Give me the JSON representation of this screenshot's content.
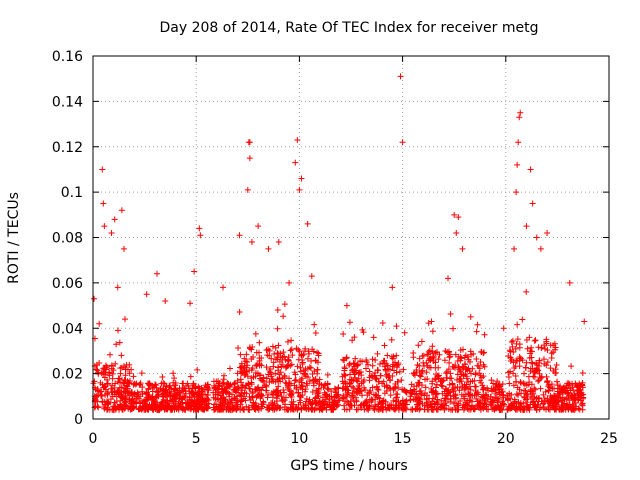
{
  "chart_data": {
    "type": "scatter",
    "title": "Day 208 of 2014, Rate Of TEC Index for receiver metg",
    "xlabel": "GPS time / hours",
    "ylabel": "ROTI / TECUs",
    "xlim": [
      0,
      25
    ],
    "ylim": [
      0,
      0.16
    ],
    "xticks": [
      0,
      5,
      10,
      15,
      20,
      25
    ],
    "xtick_labels": [
      "0",
      "5",
      "10",
      "15",
      "20",
      "25"
    ],
    "yticks": [
      0,
      0.02,
      0.04,
      0.06,
      0.08,
      0.1,
      0.12,
      0.14,
      0.16
    ],
    "ytick_labels": [
      "0",
      "0.02",
      "0.04",
      "0.06",
      "0.08",
      "0.1",
      "0.12",
      "0.14",
      "0.16"
    ],
    "grid": true,
    "marker": "+",
    "series": [
      {
        "name": "ROTI",
        "color": "#ff0000",
        "note": "dense cloud of points mostly between 0.005 and 0.035 TECU/min; gaps near 5.6, 12.0, 15.3, 19.2, 20.0 and after 23.7 hours",
        "x": [
          0.05,
          0.3,
          0.45,
          0.5,
          0.55,
          0.9,
          1.05,
          1.2,
          1.4,
          1.5,
          1.55,
          2.6,
          3.1,
          3.5,
          4.7,
          4.9,
          5.15,
          5.2,
          6.3,
          7.1,
          7.5,
          7.55,
          7.6,
          7.6,
          7.7,
          8.0,
          8.5,
          9.0,
          9.5,
          9.8,
          9.9,
          10.0,
          10.1,
          10.4,
          10.6,
          12.3,
          13.6,
          14.5,
          14.9,
          15.0,
          15.1,
          16.4,
          17.2,
          17.5,
          17.6,
          17.7,
          17.9,
          18.3,
          19.9,
          20.4,
          20.5,
          20.55,
          20.6,
          20.65,
          20.7,
          21.0,
          21.2,
          21.3,
          21.5,
          21.7,
          22.0,
          23.1,
          23.8
        ],
        "y": [
          0.053,
          0.042,
          0.11,
          0.095,
          0.085,
          0.082,
          0.088,
          0.058,
          0.092,
          0.075,
          0.044,
          0.055,
          0.064,
          0.052,
          0.051,
          0.065,
          0.084,
          0.081,
          0.058,
          0.081,
          0.101,
          0.122,
          0.115,
          0.122,
          0.078,
          0.085,
          0.075,
          0.078,
          0.06,
          0.113,
          0.123,
          0.101,
          0.106,
          0.086,
          0.063,
          0.05,
          0.036,
          0.058,
          0.151,
          0.122,
          0.038,
          0.043,
          0.062,
          0.09,
          0.082,
          0.089,
          0.075,
          0.045,
          0.04,
          0.075,
          0.1,
          0.112,
          0.122,
          0.133,
          0.135,
          0.085,
          0.11,
          0.095,
          0.08,
          0.075,
          0.082,
          0.06,
          0.043
        ]
      }
    ]
  }
}
